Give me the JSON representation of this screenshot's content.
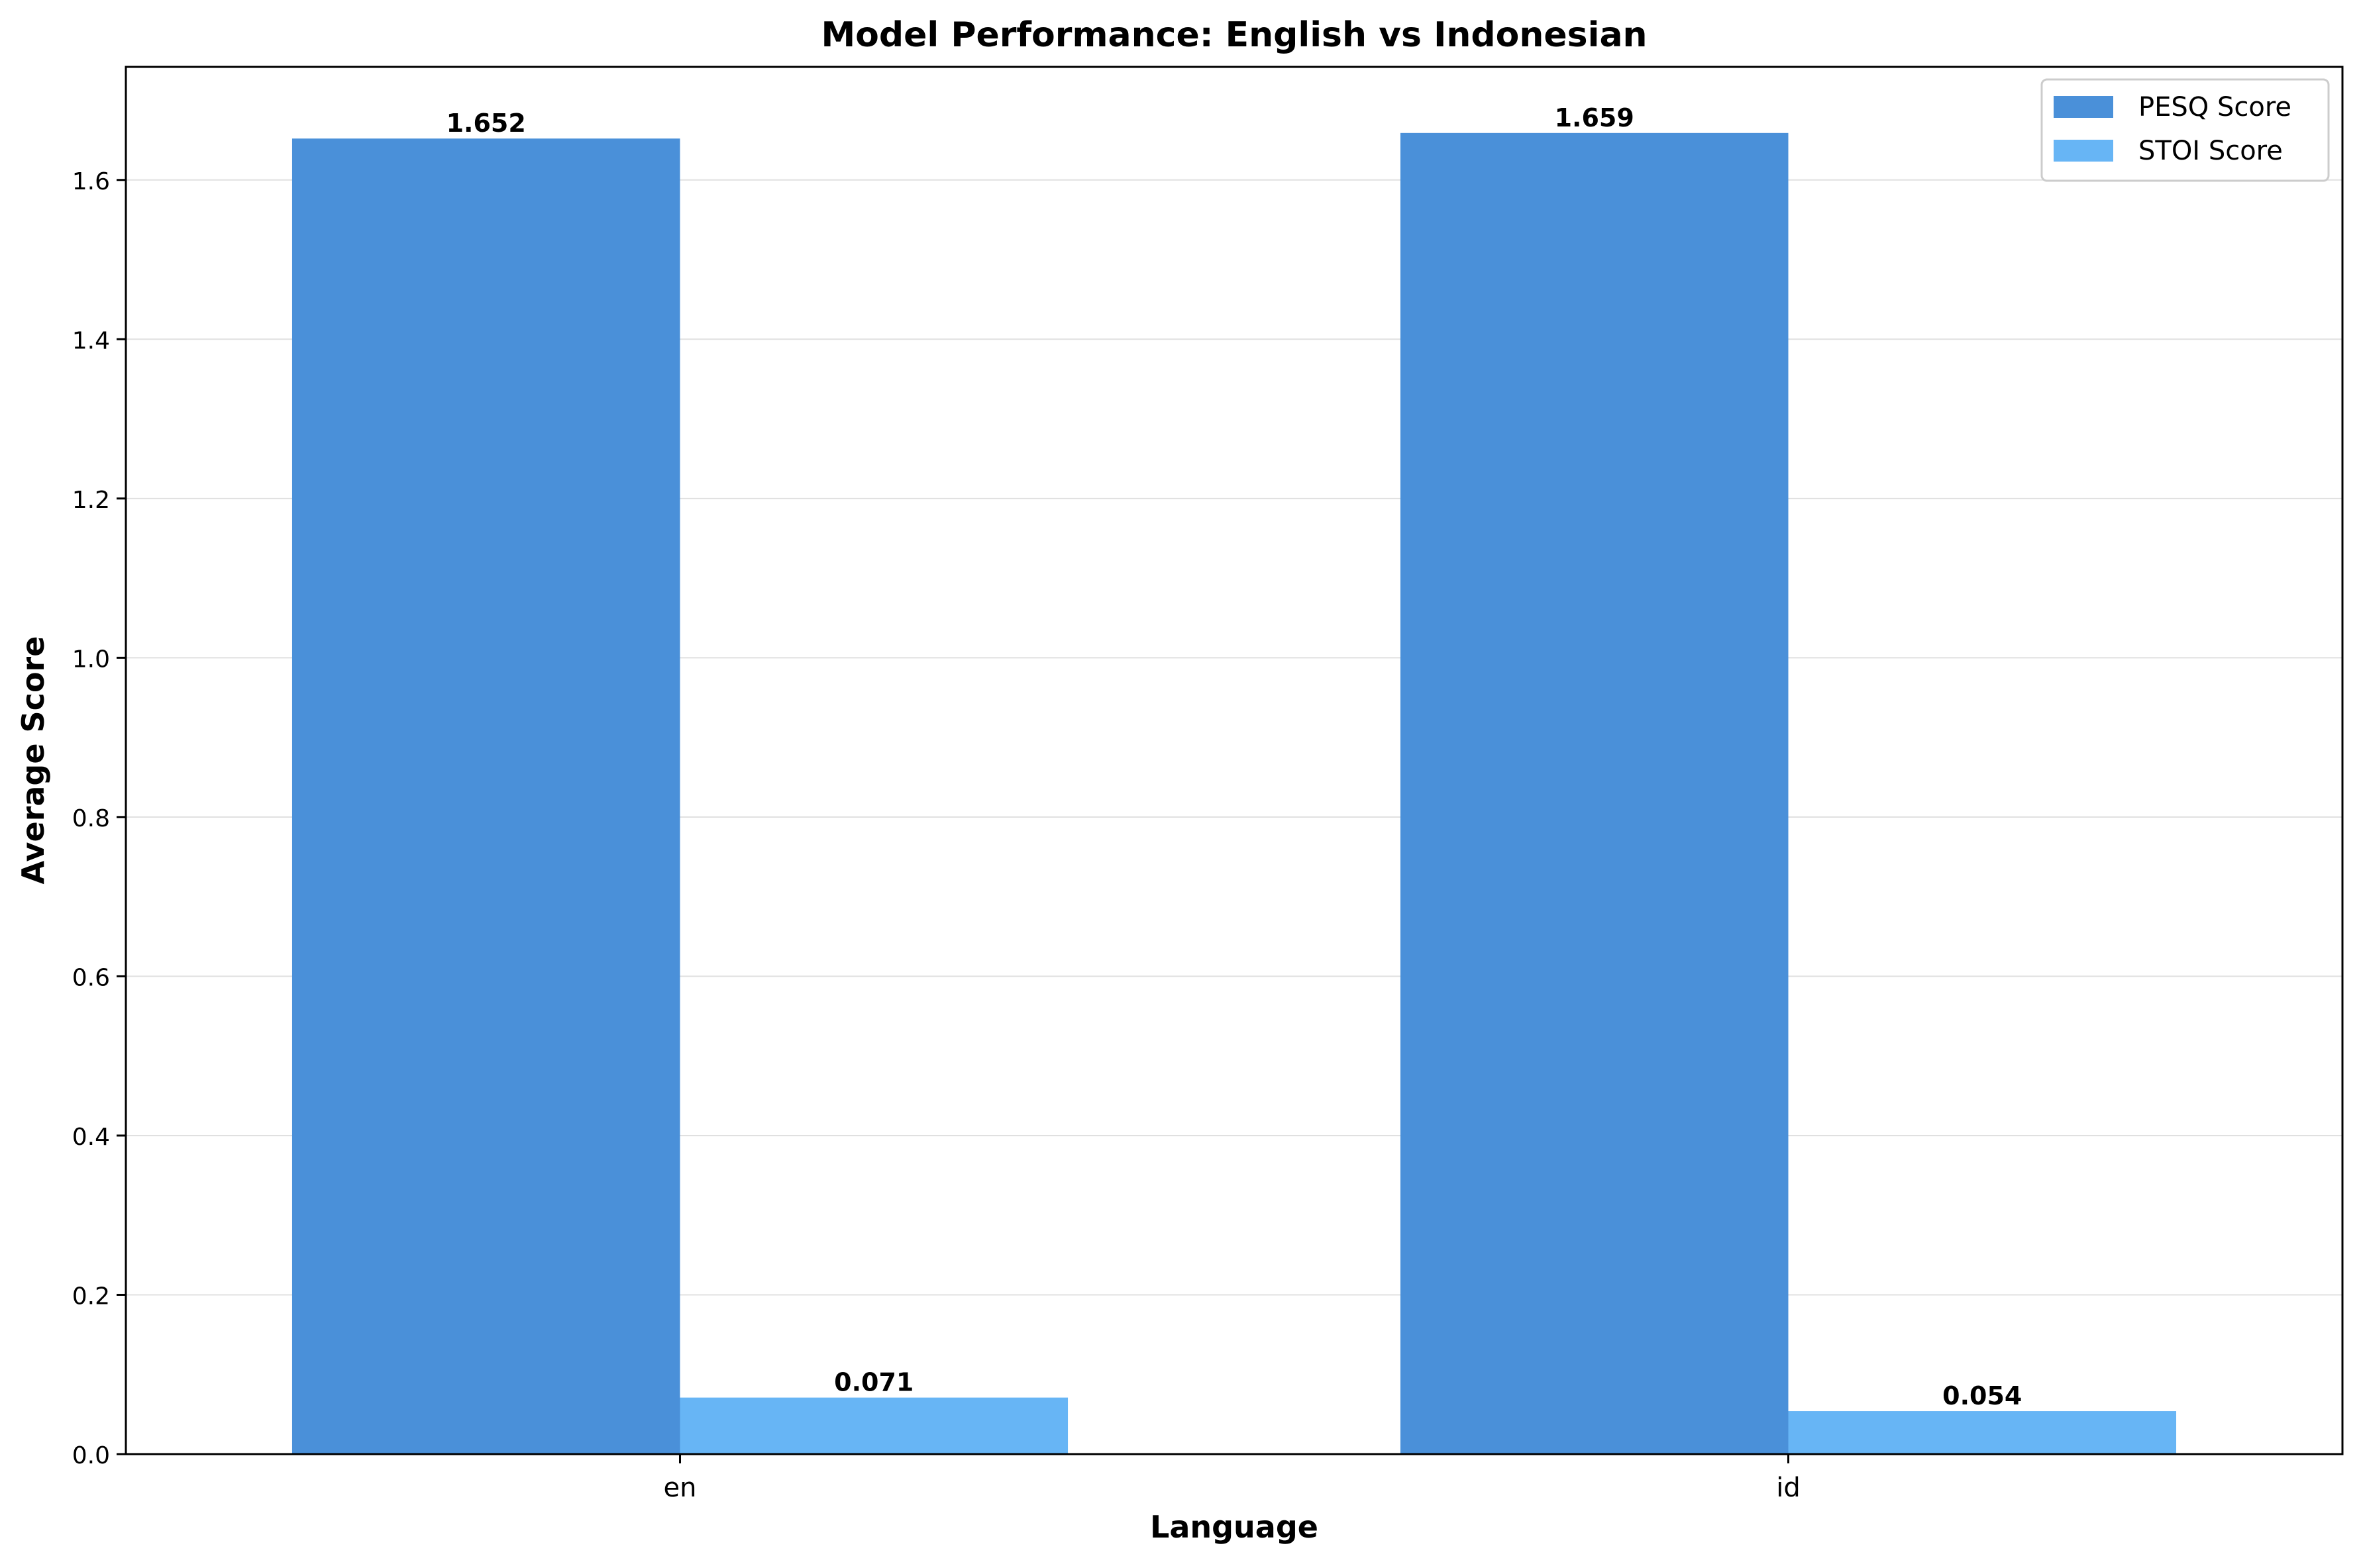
{
  "chart_data": {
    "type": "bar",
    "title": "Model Performance: English vs Indonesian",
    "xlabel": "Language",
    "ylabel": "Average Score",
    "categories": [
      "en",
      "id"
    ],
    "series": [
      {
        "name": "PESQ Score",
        "values": [
          1.652,
          1.659
        ],
        "color": "#4a90d9"
      },
      {
        "name": "STOI Score",
        "values": [
          0.071,
          0.054
        ],
        "color": "#67b5f5"
      }
    ],
    "data_labels": [
      [
        "1.652",
        "1.659"
      ],
      [
        "0.071",
        "0.054"
      ]
    ],
    "ylim": [
      0,
      1.742
    ],
    "yticks": [
      0.0,
      0.2,
      0.4,
      0.6,
      0.8,
      1.0,
      1.2,
      1.4,
      1.6
    ],
    "ytick_labels": [
      "0.0",
      "0.2",
      "0.4",
      "0.6",
      "0.8",
      "1.0",
      "1.2",
      "1.4",
      "1.6"
    ],
    "grid": "horizontal",
    "legend_position": "top-right"
  }
}
